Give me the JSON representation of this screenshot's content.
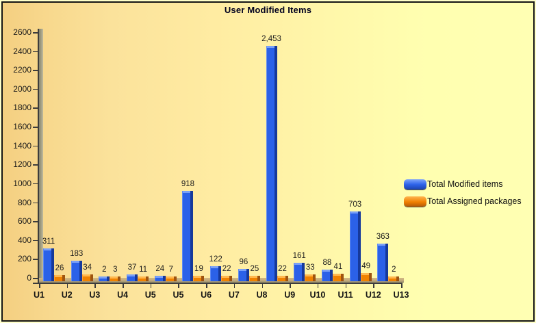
{
  "window": {
    "title": "User Modified Items"
  },
  "colors": {
    "series_modified": "#2B61E8",
    "series_assigned": "#F08200",
    "background_left": "#F4CF81",
    "background_right": "#FFFFB3",
    "wall": "#A9A489",
    "floor": "#C2AB7D",
    "border": "#141414"
  },
  "chart_data": {
    "type": "bar",
    "title": "User Modified Items",
    "xlabel": "",
    "ylabel": "",
    "ylim": [
      0,
      2600
    ],
    "y_ticks": [
      0,
      200,
      400,
      600,
      800,
      1000,
      1200,
      1400,
      1600,
      1800,
      2000,
      2200,
      2400,
      2600
    ],
    "grid": false,
    "legend_position": "right",
    "tick_labels": [
      "U1",
      "U2",
      "U3",
      "U4",
      "U5",
      "U5",
      "U6",
      "U7",
      "U8",
      "U9",
      "U10",
      "U11",
      "U12",
      "U13"
    ],
    "groups_between_ticks": true,
    "series": [
      {
        "name": "Total Modified items",
        "color": "#2B61E8",
        "values": [
          311,
          183,
          2,
          37,
          24,
          918,
          122,
          96,
          2453,
          161,
          88,
          703,
          363
        ]
      },
      {
        "name": "Total Assigned packages",
        "color": "#F08200",
        "values": [
          26,
          34,
          3,
          11,
          7,
          19,
          22,
          25,
          22,
          33,
          41,
          49,
          2
        ]
      }
    ]
  }
}
